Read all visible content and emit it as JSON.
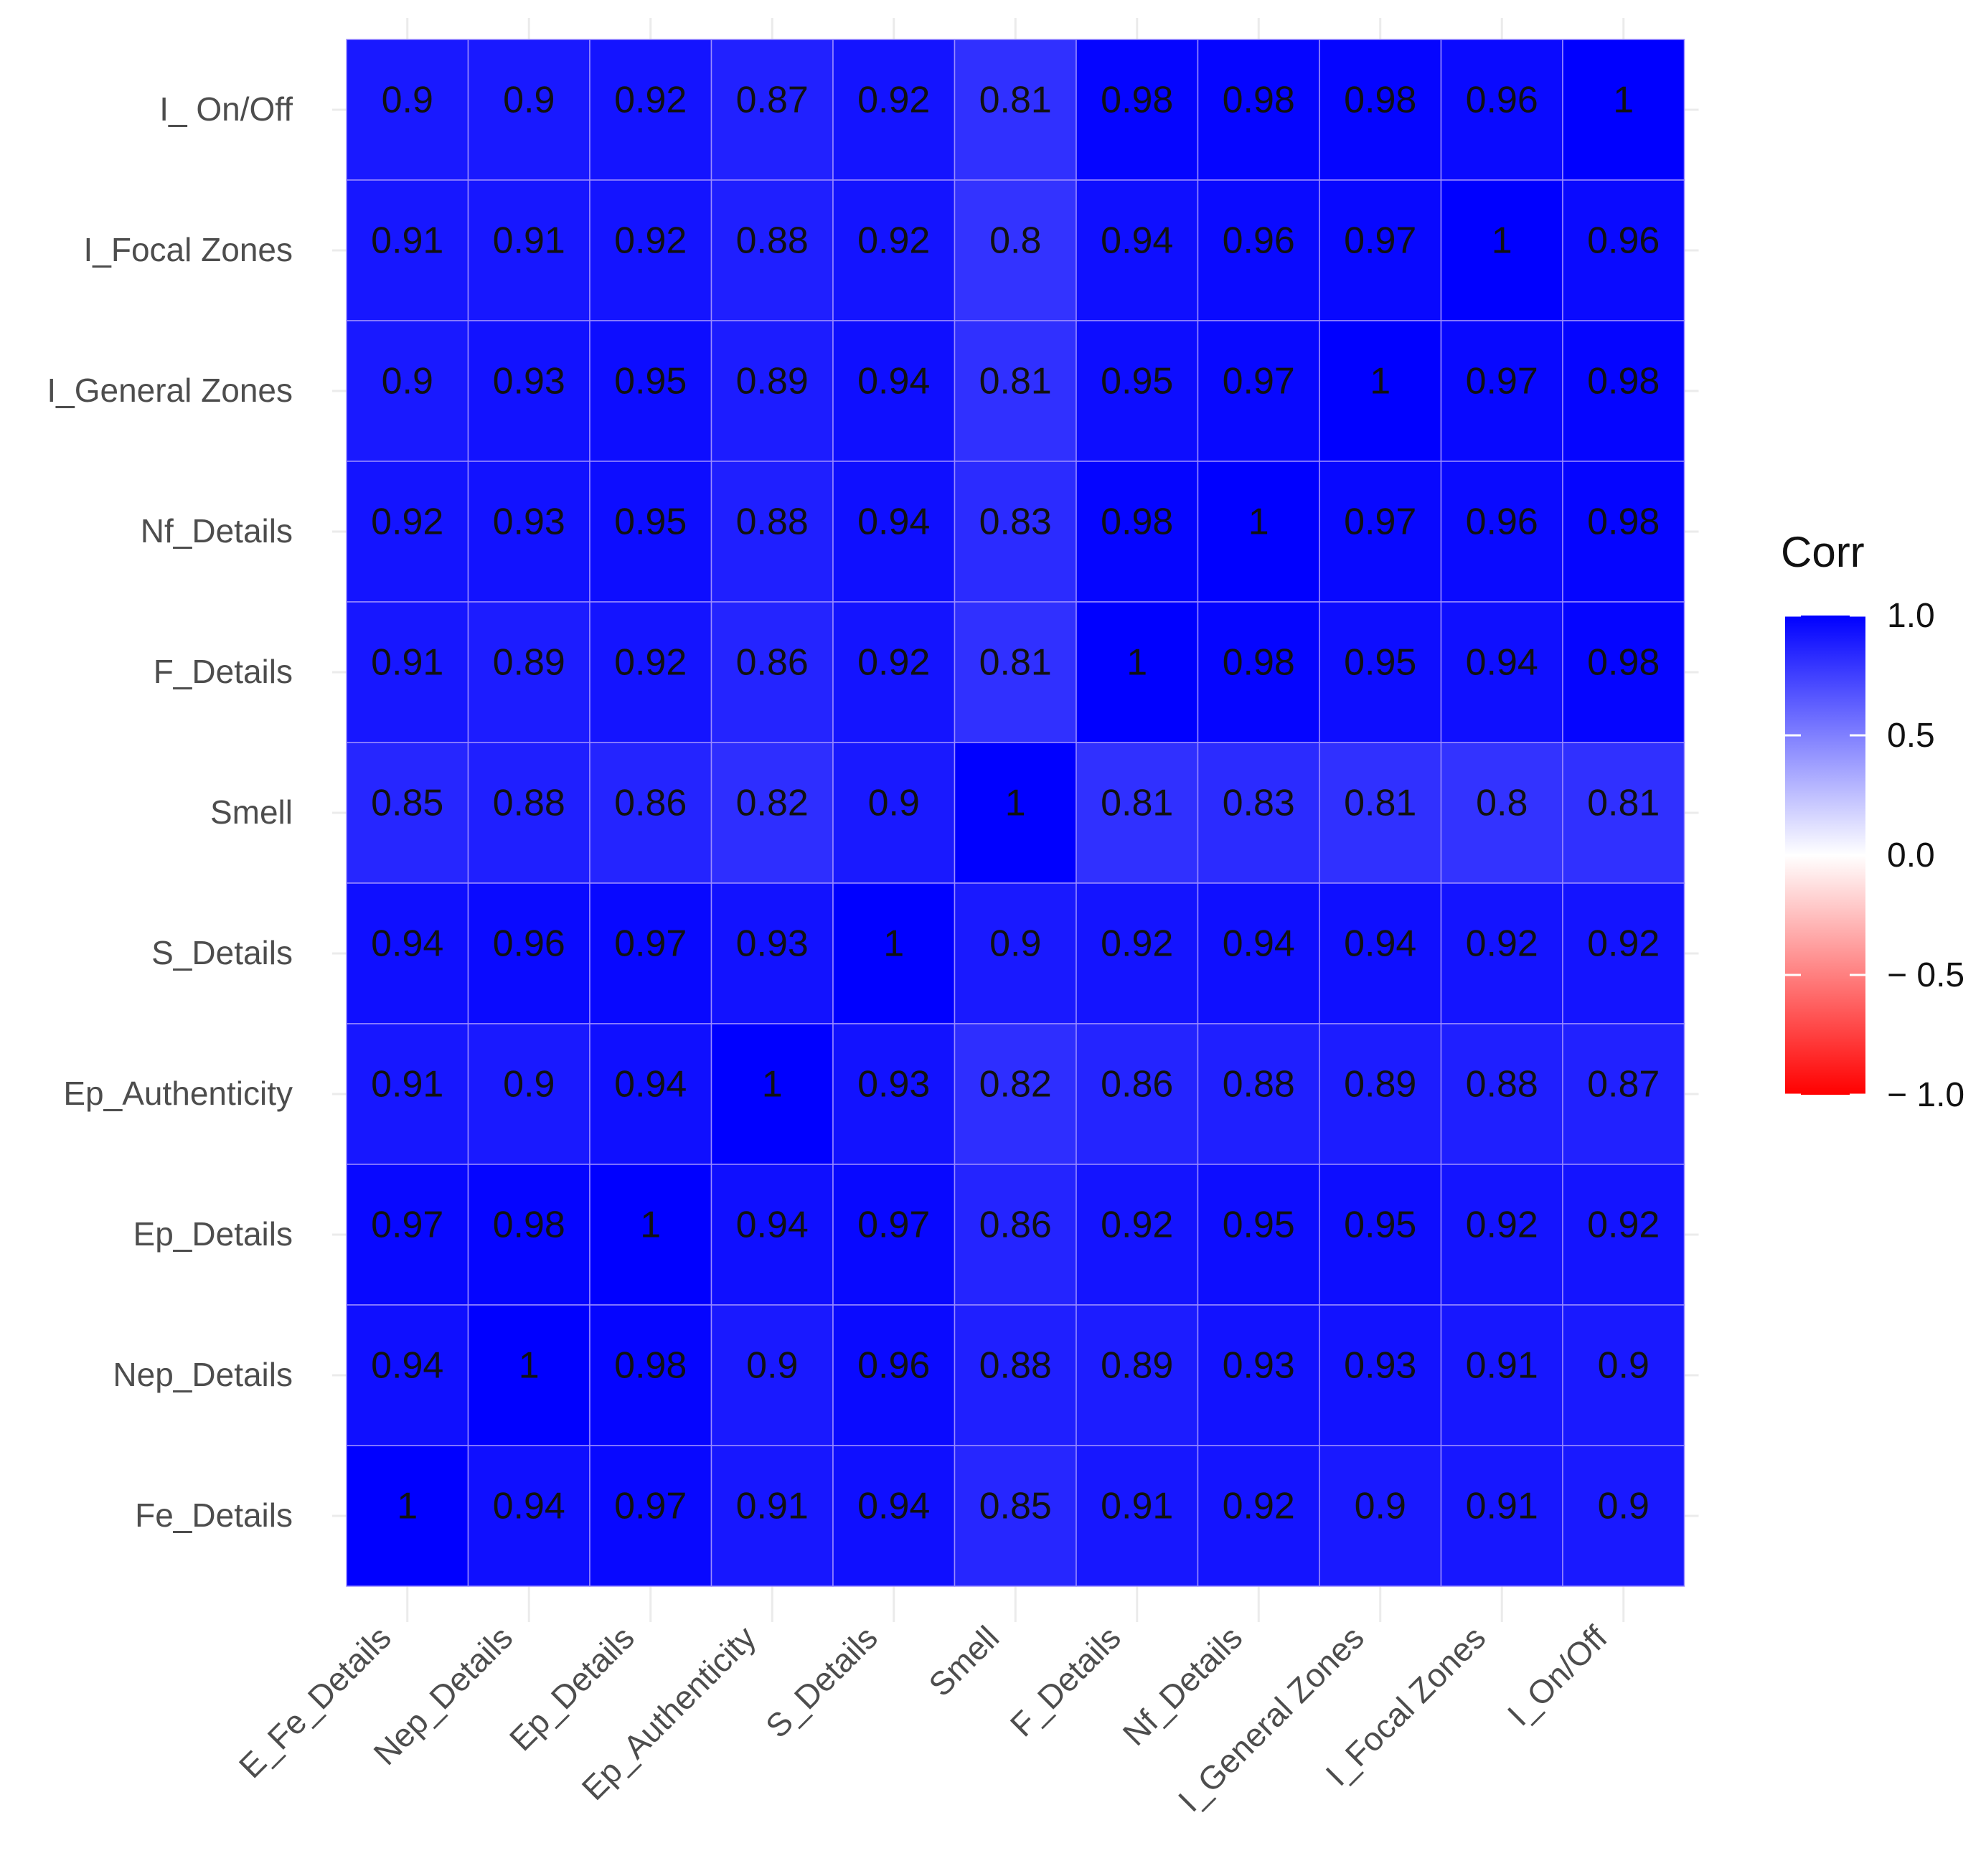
{
  "chart_data": {
    "type": "heatmap",
    "title": "",
    "xlabel": "",
    "ylabel": "",
    "x_categories": [
      "E_Fe_Details",
      "Nep_Details",
      "Ep_Details",
      "Ep_Authenticity",
      "S_Details",
      "Smell",
      "F_Details",
      "Nf_Details",
      "I_General Zones",
      "I_Focal Zones",
      "I_On/Off"
    ],
    "y_categories_top_to_bottom": [
      "I_ On/Off",
      "I_Focal Zones",
      "I_General Zones",
      "Nf_Details",
      "F_Details",
      "Smell",
      "S_Details",
      "Ep_Authenticity",
      "Ep_Details",
      "Nep_Details",
      "Fe_Details"
    ],
    "values": [
      [
        0.9,
        0.9,
        0.92,
        0.87,
        0.92,
        0.81,
        0.98,
        0.98,
        0.98,
        0.96,
        1
      ],
      [
        0.91,
        0.91,
        0.92,
        0.88,
        0.92,
        0.8,
        0.94,
        0.96,
        0.97,
        1,
        0.96
      ],
      [
        0.9,
        0.93,
        0.95,
        0.89,
        0.94,
        0.81,
        0.95,
        0.97,
        1,
        0.97,
        0.98
      ],
      [
        0.92,
        0.93,
        0.95,
        0.88,
        0.94,
        0.83,
        0.98,
        1,
        0.97,
        0.96,
        0.98
      ],
      [
        0.91,
        0.89,
        0.92,
        0.86,
        0.92,
        0.81,
        1,
        0.98,
        0.95,
        0.94,
        0.98
      ],
      [
        0.85,
        0.88,
        0.86,
        0.82,
        0.9,
        1,
        0.81,
        0.83,
        0.81,
        0.8,
        0.81
      ],
      [
        0.94,
        0.96,
        0.97,
        0.93,
        1,
        0.9,
        0.92,
        0.94,
        0.94,
        0.92,
        0.92
      ],
      [
        0.91,
        0.9,
        0.94,
        1,
        0.93,
        0.82,
        0.86,
        0.88,
        0.89,
        0.88,
        0.87
      ],
      [
        0.97,
        0.98,
        1,
        0.94,
        0.97,
        0.86,
        0.92,
        0.95,
        0.95,
        0.92,
        0.92
      ],
      [
        0.94,
        1,
        0.98,
        0.9,
        0.96,
        0.88,
        0.89,
        0.93,
        0.93,
        0.91,
        0.9
      ],
      [
        1,
        0.94,
        0.97,
        0.91,
        0.94,
        0.85,
        0.91,
        0.92,
        0.9,
        0.91,
        0.9
      ]
    ],
    "legend": {
      "title": "Corr",
      "ticks": [
        1.0,
        0.5,
        0.0,
        -0.5,
        -1.0
      ],
      "tick_labels": [
        "1.0",
        "0.5",
        "0.0",
        "− 0.5",
        "− 1.0"
      ],
      "range": [
        -1.0,
        1.0
      ],
      "placement": "right"
    },
    "colors": {
      "high": "#0000FF",
      "mid": "#FFFFFF",
      "low": "#FF0000",
      "grid": "#EBEBEB",
      "cell_border": "#9A8CFF"
    }
  }
}
